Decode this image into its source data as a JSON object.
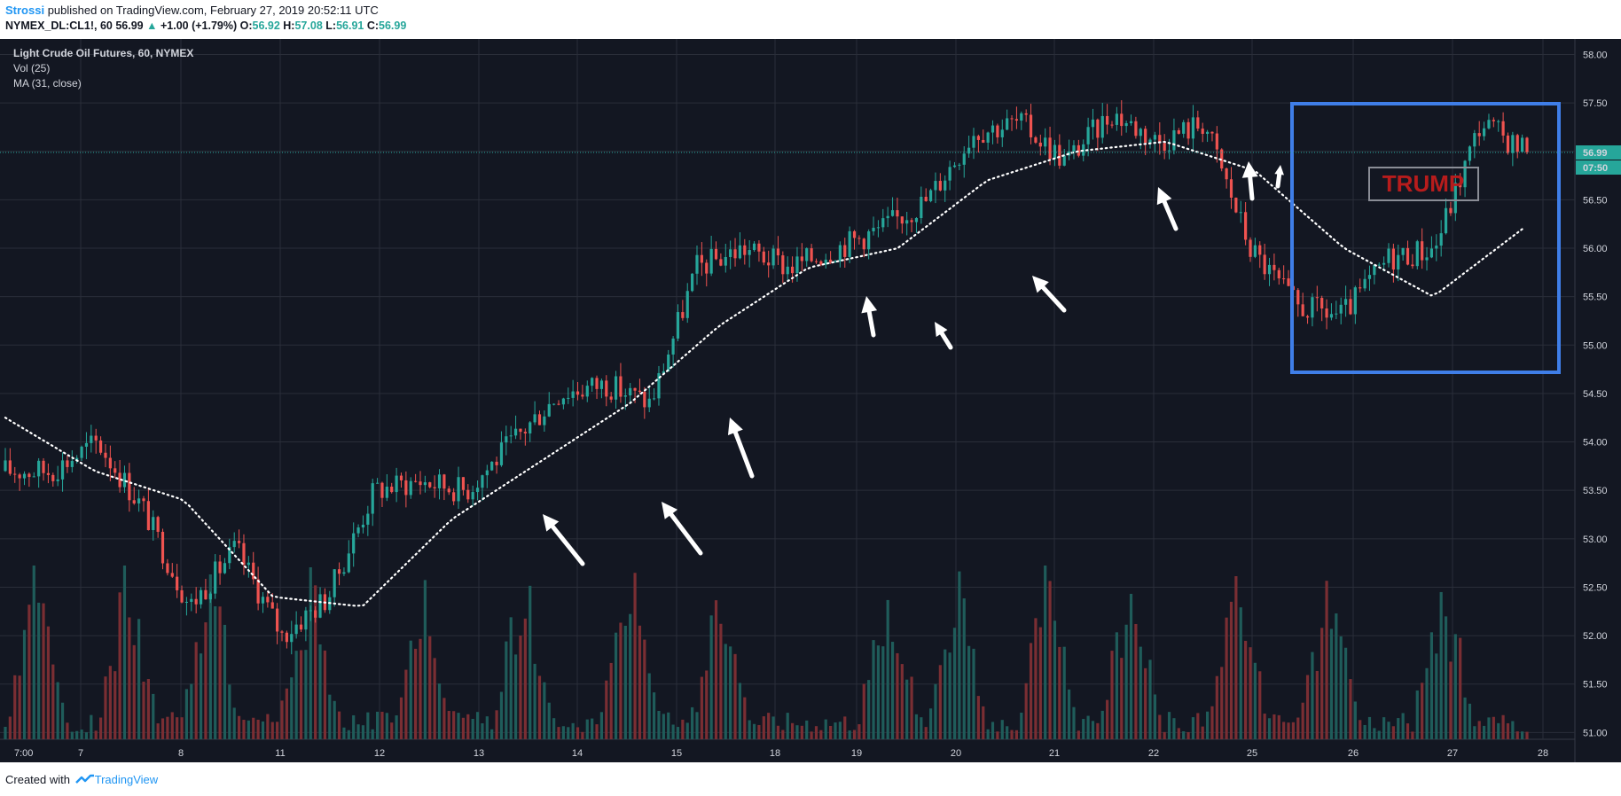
{
  "header": {
    "author": "Strossi",
    "published_text": " published on TradingView.com, February 27, 2019 20:52:11 UTC",
    "symbol": "NYMEX_DL:CL1!, 60",
    "last": "56.99",
    "change": "+1.00 (+1.79%)",
    "o_label": "O:",
    "o": "56.92",
    "h_label": "H:",
    "h": "57.08",
    "l_label": "L:",
    "l": "56.91",
    "c_label": "C:",
    "c": "56.99"
  },
  "footer": {
    "created_with": "Created with",
    "brand": "TradingView"
  },
  "colors": {
    "background": "#131722",
    "grid": "#2a2e39",
    "up": "#26a69a",
    "down": "#ef5350",
    "vol_up": "#1f5c5a",
    "vol_down": "#7a2e33",
    "ma": "#ffffff",
    "box": "#3f7ee8",
    "trump_text": "#b71c1c",
    "price_line": "#26a69a"
  },
  "chart_data": {
    "type": "candlestick",
    "title": "Light Crude Oil Futures, 60, NYMEX",
    "indicators": [
      "Vol (25)",
      "MA (31, close)"
    ],
    "y_ticks": [
      "58.00",
      "57.50",
      "57.00",
      "56.50",
      "56.00",
      "55.50",
      "55.00",
      "54.50",
      "54.00",
      "53.50",
      "53.00",
      "52.50",
      "52.00",
      "51.50",
      "51.00"
    ],
    "ylim": [
      50.93,
      58.16
    ],
    "x_ticks": [
      "7:00",
      "7",
      "8",
      "11",
      "12",
      "13",
      "14",
      "15",
      "18",
      "19",
      "20",
      "21",
      "22",
      "25",
      "26",
      "27",
      "28"
    ],
    "last_price_label": "56.99",
    "countdown_label": "07:50",
    "annotation_text": "TRUMP",
    "grid": true,
    "price_path": [
      {
        "date": "Feb 6 07:00",
        "close": 53.7
      },
      {
        "date": "Feb 7",
        "close": 53.7
      },
      {
        "date": "Feb 7 mid",
        "close": 54.0
      },
      {
        "date": "Feb 8",
        "close": 53.3
      },
      {
        "date": "Feb 8 mid",
        "close": 52.3
      },
      {
        "date": "Feb 11",
        "close": 52.9
      },
      {
        "date": "Feb 11 mid",
        "close": 52.0
      },
      {
        "date": "Feb 12",
        "close": 52.4
      },
      {
        "date": "Feb 12 mid",
        "close": 53.5
      },
      {
        "date": "Feb 13",
        "close": 53.6
      },
      {
        "date": "Feb 13 mid",
        "close": 53.5
      },
      {
        "date": "Feb 14",
        "close": 54.0
      },
      {
        "date": "Feb 14 mid",
        "close": 54.5
      },
      {
        "date": "Feb 15",
        "close": 54.6
      },
      {
        "date": "Feb 15 mid",
        "close": 54.4
      },
      {
        "date": "Feb 18",
        "close": 55.8
      },
      {
        "date": "Feb 18 mid",
        "close": 56.0
      },
      {
        "date": "Feb 19",
        "close": 55.8
      },
      {
        "date": "Feb 19 mid",
        "close": 56.0
      },
      {
        "date": "Feb 20",
        "close": 56.2
      },
      {
        "date": "Feb 20 mid",
        "close": 56.5
      },
      {
        "date": "Feb 21",
        "close": 57.2
      },
      {
        "date": "Feb 21 mid",
        "close": 57.3
      },
      {
        "date": "Feb 22",
        "close": 56.9
      },
      {
        "date": "Feb 22 mid",
        "close": 57.4
      },
      {
        "date": "Feb 25",
        "close": 57.1
      },
      {
        "date": "Feb 25 mid",
        "close": 57.3
      },
      {
        "date": "Feb 25 late",
        "close": 56.0
      },
      {
        "date": "Feb 26",
        "close": 55.4
      },
      {
        "date": "Feb 26 mid",
        "close": 55.3
      },
      {
        "date": "Feb 27",
        "close": 55.9
      },
      {
        "date": "Feb 27 mid",
        "close": 56.0
      },
      {
        "date": "Feb 27 late",
        "close": 57.3
      },
      {
        "date": "Feb 27 last",
        "close": 56.99
      }
    ],
    "ma_path": [
      {
        "date": "Feb 6 07:00",
        "value": 54.25
      },
      {
        "date": "Feb 7",
        "value": 53.7
      },
      {
        "date": "Feb 8",
        "value": 53.4
      },
      {
        "date": "Feb 11",
        "value": 52.4
      },
      {
        "date": "Feb 12",
        "value": 52.3
      },
      {
        "date": "Feb 13",
        "value": 53.2
      },
      {
        "date": "Feb 14",
        "value": 53.8
      },
      {
        "date": "Feb 15",
        "value": 54.4
      },
      {
        "date": "Feb 18",
        "value": 55.2
      },
      {
        "date": "Feb 19",
        "value": 55.8
      },
      {
        "date": "Feb 20",
        "value": 56.0
      },
      {
        "date": "Feb 21",
        "value": 56.7
      },
      {
        "date": "Feb 22",
        "value": 57.0
      },
      {
        "date": "Feb 25",
        "value": 57.1
      },
      {
        "date": "Feb 25 late",
        "value": 56.8
      },
      {
        "date": "Feb 26",
        "value": 56.0
      },
      {
        "date": "Feb 27",
        "value": 55.5
      },
      {
        "date": "Feb 27 last",
        "value": 56.2
      }
    ],
    "volume_spike_sessions": [
      "Feb 7",
      "Feb 8",
      "Feb 11",
      "Feb 12",
      "Feb 13",
      "Feb 14",
      "Feb 15",
      "Feb 20",
      "Feb 21",
      "Feb 22",
      "Feb 25",
      "Feb 26",
      "Feb 27"
    ]
  }
}
